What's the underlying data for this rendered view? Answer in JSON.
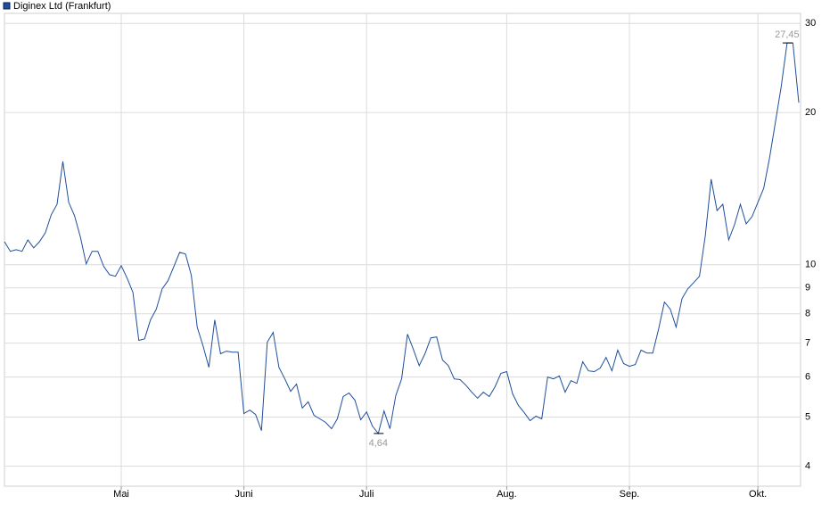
{
  "chart_data": {
    "type": "line",
    "log_y": true,
    "grid": true,
    "ylim": [
      3.65,
      31.4
    ],
    "yticks": [
      4,
      5,
      6,
      7,
      8,
      9,
      10,
      20,
      30
    ],
    "categories": [
      null,
      null,
      null,
      null,
      null,
      null,
      null,
      null,
      null,
      null,
      null,
      null,
      null,
      null,
      null,
      null,
      null,
      null,
      null,
      null,
      "Mai",
      null,
      null,
      null,
      null,
      null,
      null,
      null,
      null,
      null,
      null,
      null,
      null,
      null,
      null,
      null,
      null,
      null,
      null,
      null,
      null,
      "Juni",
      null,
      null,
      null,
      null,
      null,
      null,
      null,
      null,
      null,
      null,
      null,
      null,
      null,
      null,
      null,
      null,
      null,
      null,
      null,
      null,
      "Juli",
      null,
      null,
      null,
      null,
      null,
      null,
      null,
      null,
      null,
      null,
      null,
      null,
      null,
      null,
      null,
      null,
      null,
      null,
      null,
      null,
      null,
      null,
      null,
      "Aug.",
      null,
      null,
      null,
      null,
      null,
      null,
      null,
      null,
      null,
      null,
      null,
      null,
      null,
      null,
      null,
      null,
      null,
      null,
      null,
      null,
      "Sep.",
      null,
      null,
      null,
      null,
      null,
      null,
      null,
      null,
      null,
      null,
      null,
      null,
      null,
      null,
      null,
      null,
      null,
      null,
      null,
      null,
      null,
      "Okt.",
      null,
      null,
      null,
      null,
      null,
      null,
      null
    ],
    "series": [
      {
        "name": "Diginex Ltd (Frankfurt)",
        "color": "#1f4e9c",
        "values": [
          11.11,
          10.63,
          10.71,
          10.63,
          11.2,
          10.8,
          11.11,
          11.57,
          12.55,
          13.17,
          16.0,
          13.28,
          12.5,
          11.34,
          10.04,
          10.63,
          10.63,
          9.92,
          9.56,
          9.49,
          9.96,
          9.41,
          8.82,
          7.09,
          7.14,
          7.78,
          8.17,
          8.96,
          9.3,
          9.92,
          10.58,
          10.5,
          9.53,
          7.53,
          6.91,
          6.27,
          7.78,
          6.67,
          6.75,
          6.72,
          6.72,
          5.08,
          5.16,
          5.06,
          4.7,
          7.03,
          7.35,
          6.27,
          5.95,
          5.62,
          5.81,
          5.21,
          5.36,
          5.04,
          4.96,
          4.88,
          4.74,
          4.96,
          5.49,
          5.58,
          5.4,
          4.94,
          5.12,
          4.8,
          4.64,
          5.14,
          4.74,
          5.51,
          5.95,
          7.29,
          6.81,
          6.32,
          6.67,
          7.17,
          7.2,
          6.48,
          6.32,
          5.95,
          5.93,
          5.78,
          5.6,
          5.45,
          5.6,
          5.49,
          5.74,
          6.1,
          6.15,
          5.56,
          5.27,
          5.1,
          4.92,
          5.02,
          4.96,
          6.0,
          5.95,
          6.03,
          5.6,
          5.9,
          5.83,
          6.43,
          6.17,
          6.15,
          6.25,
          6.56,
          6.17,
          6.78,
          6.38,
          6.3,
          6.35,
          6.78,
          6.69,
          6.69,
          7.47,
          8.44,
          8.17,
          7.53,
          8.57,
          8.96,
          9.22,
          9.49,
          11.43,
          14.76,
          12.8,
          13.17,
          11.2,
          12.0,
          13.17,
          12.05,
          12.45,
          13.28,
          14.17,
          16.26,
          19.13,
          22.5,
          27.45,
          27.45,
          20.91
        ],
        "value_labels": [
          null,
          null,
          null,
          null,
          null,
          null,
          null,
          null,
          null,
          null,
          null,
          null,
          null,
          null,
          null,
          null,
          null,
          null,
          null,
          null,
          null,
          null,
          null,
          null,
          null,
          null,
          null,
          null,
          null,
          null,
          null,
          null,
          null,
          null,
          null,
          null,
          null,
          null,
          null,
          null,
          null,
          null,
          null,
          null,
          null,
          null,
          null,
          null,
          null,
          null,
          null,
          null,
          null,
          null,
          null,
          null,
          null,
          null,
          null,
          null,
          null,
          null,
          null,
          null,
          "4,64",
          null,
          null,
          null,
          null,
          null,
          null,
          null,
          null,
          null,
          null,
          null,
          null,
          null,
          null,
          null,
          null,
          null,
          null,
          null,
          null,
          null,
          null,
          null,
          null,
          null,
          null,
          null,
          null,
          null,
          null,
          null,
          null,
          null,
          null,
          null,
          null,
          null,
          null,
          null,
          null,
          null,
          null,
          null,
          null,
          null,
          null,
          null,
          null,
          null,
          null,
          null,
          null,
          null,
          null,
          null,
          null,
          null,
          null,
          null,
          null,
          null,
          null,
          null,
          null,
          null,
          null,
          null,
          null,
          null,
          "27,45",
          null,
          null
        ]
      }
    ]
  }
}
